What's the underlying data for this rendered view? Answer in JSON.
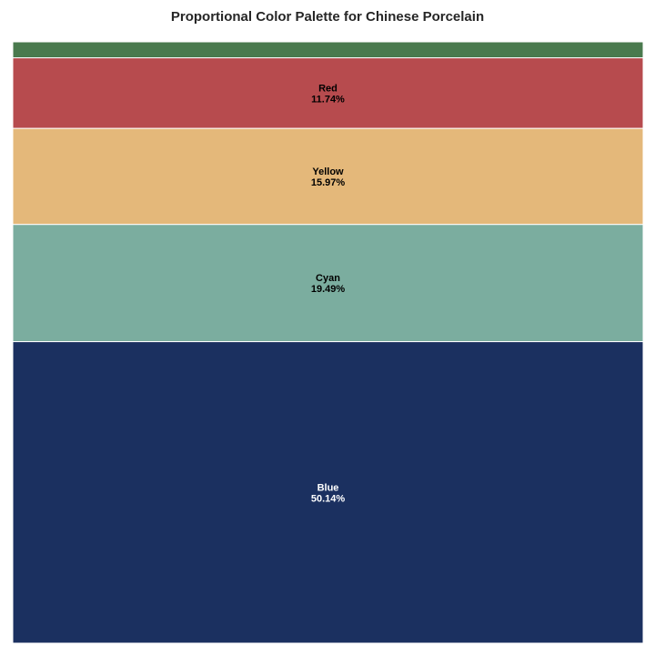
{
  "chart_data": {
    "type": "treemap",
    "title": "Proportional Color Palette for Chinese Porcelain",
    "segments": [
      {
        "name": "",
        "percent": 2.66,
        "color": "#4a7a4e"
      },
      {
        "name": "Red",
        "percent": 11.74,
        "color": "#b74b4e"
      },
      {
        "name": "Yellow",
        "percent": 15.97,
        "color": "#e4b87a"
      },
      {
        "name": "Cyan",
        "percent": 19.49,
        "color": "#7bad9f"
      },
      {
        "name": "Blue",
        "percent": 50.14,
        "color": "#1b3060"
      }
    ],
    "percent_labels": [
      "",
      "11.74%",
      "15.97%",
      "19.49%",
      "50.14%"
    ],
    "label_colors": [
      "#000000",
      "#000000",
      "#000000",
      "#000000",
      "#ffffff"
    ]
  }
}
